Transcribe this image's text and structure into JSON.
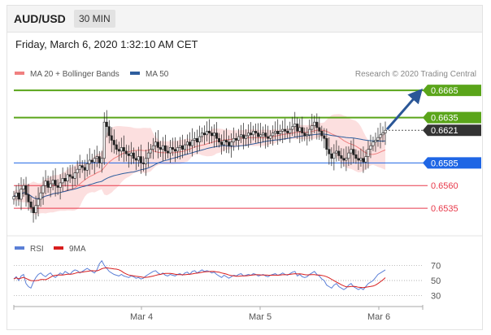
{
  "header": {
    "symbol": "AUD/USD",
    "timeframe": "30 MIN",
    "timestamp": "Friday, March 6, 2020 1:32:10 AM CET"
  },
  "chart_data": [
    {
      "type": "candlestick",
      "legend": [
        {
          "name": "MA 20 + Bollinger Bands",
          "color": "#f08080"
        },
        {
          "name": "MA 50",
          "color": "#2e5e9e"
        }
      ],
      "credit": "Research © 2020 Trading Central",
      "x_ticks": [
        "Mar 4",
        "Mar 5",
        "Mar 6"
      ],
      "ylim": [
        0.651,
        0.6675
      ],
      "levels": [
        {
          "value": 0.6665,
          "label": "0.6665",
          "color": "#5aa51a",
          "style": "resistance"
        },
        {
          "value": 0.6635,
          "label": "0.6635",
          "color": "#5aa51a",
          "style": "resistance"
        },
        {
          "value": 0.6621,
          "label": "0.6621",
          "color": "#333333",
          "style": "last"
        },
        {
          "value": 0.6585,
          "label": "0.6585",
          "color": "#1f66e5",
          "style": "pivot"
        },
        {
          "value": 0.656,
          "label": "0.6560",
          "color": "#e8394a",
          "style": "support"
        },
        {
          "value": 0.6535,
          "label": "0.6535",
          "color": "#e8394a",
          "style": "support"
        }
      ],
      "close_series": [
        0.6548,
        0.6552,
        0.6545,
        0.6556,
        0.656,
        0.655,
        0.6542,
        0.6536,
        0.653,
        0.6538,
        0.6545,
        0.6552,
        0.656,
        0.6565,
        0.6558,
        0.6562,
        0.6566,
        0.656,
        0.6558,
        0.6563,
        0.6568,
        0.6565,
        0.6572,
        0.657,
        0.6568,
        0.6574,
        0.6578,
        0.6582,
        0.658,
        0.6577,
        0.6584,
        0.6588,
        0.6586,
        0.659,
        0.6592,
        0.6585,
        0.659,
        0.663,
        0.6625,
        0.6615,
        0.661,
        0.6605,
        0.66,
        0.6598,
        0.6602,
        0.6598,
        0.6595,
        0.6593,
        0.6596,
        0.659,
        0.6588,
        0.6592,
        0.6585,
        0.6584,
        0.659,
        0.6596,
        0.66,
        0.6604,
        0.6608,
        0.6602,
        0.66,
        0.6604,
        0.6598,
        0.6596,
        0.6602,
        0.66,
        0.6598,
        0.6602,
        0.6604,
        0.66,
        0.6605,
        0.6608,
        0.6604,
        0.661,
        0.6612,
        0.6608,
        0.6614,
        0.6618,
        0.6616,
        0.662,
        0.6618,
        0.6615,
        0.6618,
        0.6612,
        0.6608,
        0.6605,
        0.661,
        0.6608,
        0.6604,
        0.6608,
        0.6612,
        0.661,
        0.6614,
        0.6616,
        0.6612,
        0.6615,
        0.6618,
        0.6616,
        0.662,
        0.6618,
        0.6614,
        0.6616,
        0.6618,
        0.6614,
        0.6612,
        0.6615,
        0.6618,
        0.662,
        0.6617,
        0.662,
        0.6622,
        0.662,
        0.6618,
        0.6622,
        0.6625,
        0.6628,
        0.662,
        0.6624,
        0.6618,
        0.6615,
        0.6616,
        0.6622,
        0.6626,
        0.663,
        0.6624,
        0.662,
        0.6615,
        0.6612,
        0.66,
        0.6595,
        0.659,
        0.6596,
        0.6598,
        0.6593,
        0.659,
        0.6588,
        0.659,
        0.6596,
        0.66,
        0.6594,
        0.659,
        0.6588,
        0.659,
        0.6586,
        0.6592,
        0.66,
        0.6604,
        0.6608,
        0.661,
        0.6613,
        0.6616,
        0.6618,
        0.6621
      ]
    },
    {
      "type": "line",
      "title": "RSI",
      "legend": [
        {
          "name": "RSI",
          "color": "#5b7fd6"
        },
        {
          "name": "9MA",
          "color": "#d81e1e"
        }
      ],
      "y_ticks": [
        70,
        50,
        30
      ],
      "ylim": [
        20,
        80
      ],
      "rsi": [
        52,
        55,
        50,
        56,
        58,
        46,
        42,
        40,
        48,
        54,
        58,
        60,
        57,
        55,
        58,
        60,
        56,
        54,
        57,
        60,
        58,
        62,
        60,
        58,
        62,
        64,
        63,
        60,
        62,
        64,
        66,
        64,
        62,
        60,
        64,
        72,
        76,
        70,
        66,
        62,
        60,
        58,
        57,
        56,
        58,
        56,
        55,
        54,
        56,
        55,
        53,
        54,
        52,
        53,
        56,
        58,
        60,
        62,
        63,
        60,
        58,
        60,
        57,
        56,
        58,
        57,
        56,
        58,
        59,
        57,
        60,
        61,
        58,
        62,
        63,
        60,
        62,
        64,
        62,
        63,
        62,
        60,
        61,
        58,
        56,
        54,
        57,
        55,
        53,
        55,
        57,
        56,
        58,
        59,
        56,
        57,
        58,
        57,
        59,
        58,
        56,
        57,
        58,
        56,
        55,
        57,
        58,
        59,
        57,
        58,
        60,
        58,
        57,
        59,
        61,
        62,
        56,
        58,
        55,
        54,
        55,
        58,
        60,
        62,
        58,
        56,
        52,
        50,
        44,
        42,
        40,
        44,
        46,
        42,
        40,
        38,
        40,
        44,
        46,
        42,
        40,
        38,
        40,
        38,
        42,
        46,
        48,
        50,
        54,
        58,
        60,
        62,
        64
      ]
    }
  ]
}
